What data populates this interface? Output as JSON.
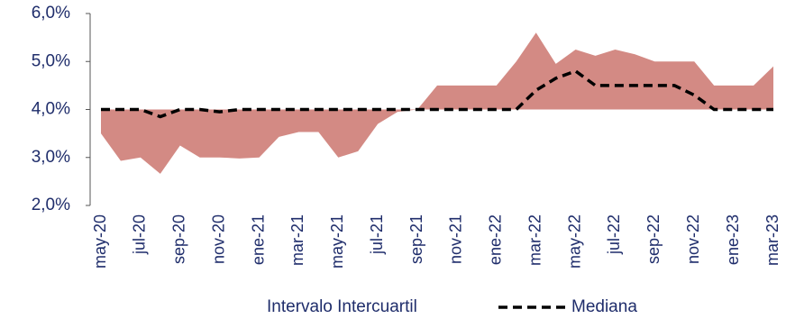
{
  "chart_data": {
    "type": "band_line",
    "categories": [
      "may-20",
      null,
      "jul-20",
      null,
      "sep-20",
      null,
      "nov-20",
      null,
      "ene-21",
      null,
      "mar-21",
      null,
      "may-21",
      null,
      "jul-21",
      null,
      "sep-21",
      null,
      "nov-21",
      null,
      "ene-22",
      null,
      "mar-22",
      null,
      "may-22",
      null,
      "jul-22",
      null,
      "sep-22",
      null,
      "nov-22",
      null,
      "ene-23",
      null,
      "mar-23"
    ],
    "series": [
      {
        "name": "Intervalo Intercuartil",
        "color": "#d38a84",
        "low": [
          3.5,
          2.93,
          3.0,
          2.66,
          3.25,
          3.0,
          3.0,
          2.98,
          3.0,
          3.43,
          3.53,
          3.53,
          3.0,
          3.13,
          3.7,
          3.95,
          4.0,
          4.0,
          4.0,
          4.0,
          4.0,
          4.0,
          4.0,
          4.0,
          4.0,
          4.0,
          4.0,
          4.0,
          4.0,
          4.0,
          4.0,
          4.0,
          4.0,
          4.0,
          4.0
        ],
        "high": [
          4.0,
          4.0,
          4.0,
          4.0,
          4.0,
          4.0,
          4.0,
          4.0,
          4.0,
          4.0,
          4.0,
          4.0,
          4.0,
          4.0,
          4.0,
          4.0,
          4.0,
          4.5,
          4.5,
          4.5,
          4.5,
          5.0,
          5.6,
          4.95,
          5.25,
          5.12,
          5.25,
          5.15,
          5.0,
          5.0,
          5.0,
          4.5,
          4.5,
          4.5,
          4.9
        ]
      },
      {
        "name": "Mediana",
        "color": "#000000",
        "values": [
          4.0,
          4.0,
          4.0,
          3.85,
          4.0,
          4.0,
          3.95,
          4.0,
          4.0,
          4.0,
          4.0,
          4.0,
          4.0,
          4.0,
          4.0,
          4.0,
          4.0,
          4.0,
          4.0,
          4.0,
          4.0,
          4.0,
          4.4,
          4.65,
          4.8,
          4.5,
          4.5,
          4.5,
          4.5,
          4.5,
          4.3,
          4.0,
          4.0,
          4.0,
          4.0
        ]
      }
    ],
    "ylim": [
      2.0,
      6.0
    ],
    "yticks": [
      {
        "value": 2.0,
        "label": "2,0%"
      },
      {
        "value": 3.0,
        "label": "3,0%"
      },
      {
        "value": 4.0,
        "label": "4,0%"
      },
      {
        "value": 5.0,
        "label": "5,0%"
      },
      {
        "value": 6.0,
        "label": "6,0%"
      }
    ],
    "legend": "bottom"
  }
}
